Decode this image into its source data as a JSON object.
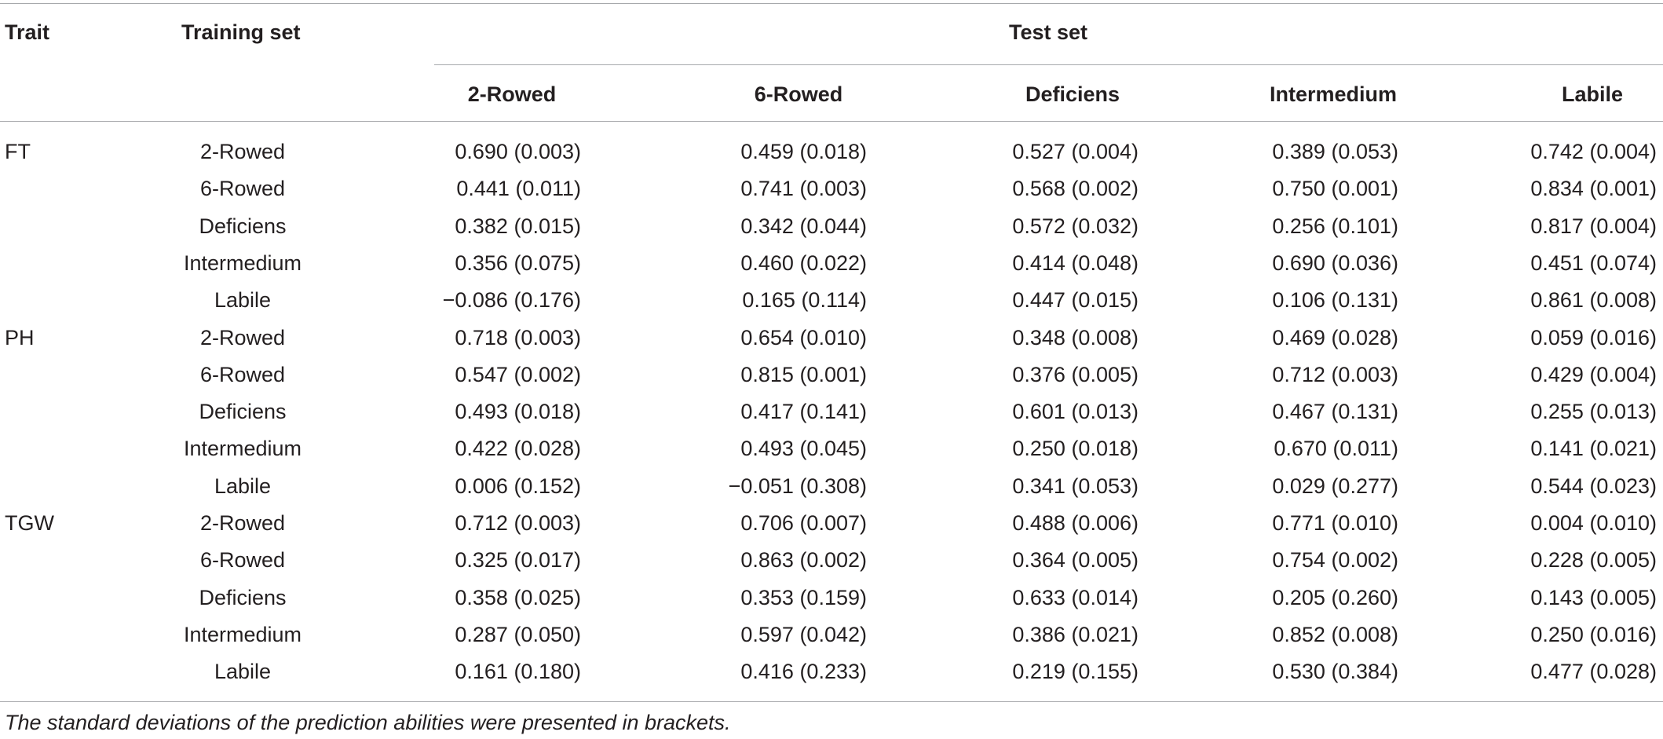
{
  "header": {
    "trait": "Trait",
    "training_set": "Training set",
    "test_set": "Test set",
    "columns": [
      "2-Rowed",
      "6-Rowed",
      "Deficiens",
      "Intermedium",
      "Labile"
    ]
  },
  "groups": [
    {
      "trait": "FT",
      "rows": [
        {
          "training": "2-Rowed",
          "values": [
            "0.690 (0.003)",
            "0.459 (0.018)",
            "0.527 (0.004)",
            "0.389 (0.053)",
            "0.742 (0.004)"
          ]
        },
        {
          "training": "6-Rowed",
          "values": [
            "0.441 (0.011)",
            "0.741 (0.003)",
            "0.568 (0.002)",
            "0.750 (0.001)",
            "0.834 (0.001)"
          ]
        },
        {
          "training": "Deficiens",
          "values": [
            "0.382 (0.015)",
            "0.342 (0.044)",
            "0.572 (0.032)",
            "0.256 (0.101)",
            "0.817 (0.004)"
          ]
        },
        {
          "training": "Intermedium",
          "values": [
            "0.356 (0.075)",
            "0.460 (0.022)",
            "0.414 (0.048)",
            "0.690 (0.036)",
            "0.451 (0.074)"
          ]
        },
        {
          "training": "Labile",
          "values": [
            "−0.086 (0.176)",
            "0.165 (0.114)",
            "0.447 (0.015)",
            "0.106 (0.131)",
            "0.861 (0.008)"
          ]
        }
      ]
    },
    {
      "trait": "PH",
      "rows": [
        {
          "training": "2-Rowed",
          "values": [
            "0.718 (0.003)",
            "0.654 (0.010)",
            "0.348 (0.008)",
            "0.469 (0.028)",
            "0.059 (0.016)"
          ]
        },
        {
          "training": "6-Rowed",
          "values": [
            "0.547 (0.002)",
            "0.815 (0.001)",
            "0.376 (0.005)",
            "0.712 (0.003)",
            "0.429 (0.004)"
          ]
        },
        {
          "training": "Deficiens",
          "values": [
            "0.493 (0.018)",
            "0.417 (0.141)",
            "0.601 (0.013)",
            "0.467 (0.131)",
            "0.255 (0.013)"
          ]
        },
        {
          "training": "Intermedium",
          "values": [
            "0.422 (0.028)",
            "0.493 (0.045)",
            "0.250 (0.018)",
            "0.670 (0.011)",
            "0.141 (0.021)"
          ]
        },
        {
          "training": "Labile",
          "values": [
            "0.006 (0.152)",
            "−0.051 (0.308)",
            "0.341 (0.053)",
            "0.029 (0.277)",
            "0.544 (0.023)"
          ]
        }
      ]
    },
    {
      "trait": "TGW",
      "rows": [
        {
          "training": "2-Rowed",
          "values": [
            "0.712 (0.003)",
            "0.706 (0.007)",
            "0.488 (0.006)",
            "0.771 (0.010)",
            "0.004 (0.010)"
          ]
        },
        {
          "training": "6-Rowed",
          "values": [
            "0.325 (0.017)",
            "0.863 (0.002)",
            "0.364 (0.005)",
            "0.754 (0.002)",
            "0.228 (0.005)"
          ]
        },
        {
          "training": "Deficiens",
          "values": [
            "0.358 (0.025)",
            "0.353 (0.159)",
            "0.633 (0.014)",
            "0.205 (0.260)",
            "0.143 (0.005)"
          ]
        },
        {
          "training": "Intermedium",
          "values": [
            "0.287 (0.050)",
            "0.597 (0.042)",
            "0.386 (0.021)",
            "0.852 (0.008)",
            "0.250 (0.016)"
          ]
        },
        {
          "training": "Labile",
          "values": [
            "0.161 (0.180)",
            "0.416 (0.233)",
            "0.219 (0.155)",
            "0.530 (0.384)",
            "0.477 (0.028)"
          ]
        }
      ]
    }
  ],
  "footnote": "The standard deviations of the prediction abilities were presented in brackets."
}
